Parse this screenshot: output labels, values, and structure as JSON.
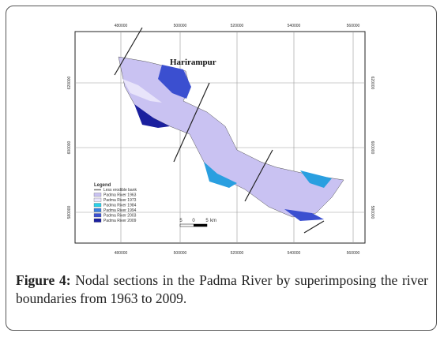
{
  "map": {
    "title": "Harirampur",
    "x_labels": [
      "480000",
      "500000",
      "520000",
      "540000",
      "560000"
    ],
    "y_labels": [
      "620000",
      "600000",
      "580000"
    ],
    "legend": {
      "title": "Legend",
      "items": [
        "Less erodible bank",
        "Padma River 1963",
        "Padma River 1973",
        "Padma River 1984",
        "Padma River 1994",
        "Padma River 2003",
        "Padma River 2009"
      ]
    },
    "scale": [
      "5",
      "0",
      "5",
      "km"
    ]
  },
  "caption": {
    "label": "Figure 4:",
    "text": "Nodal sections in the Padma River by superimposing the river boundaries from 1963 to 2009."
  }
}
